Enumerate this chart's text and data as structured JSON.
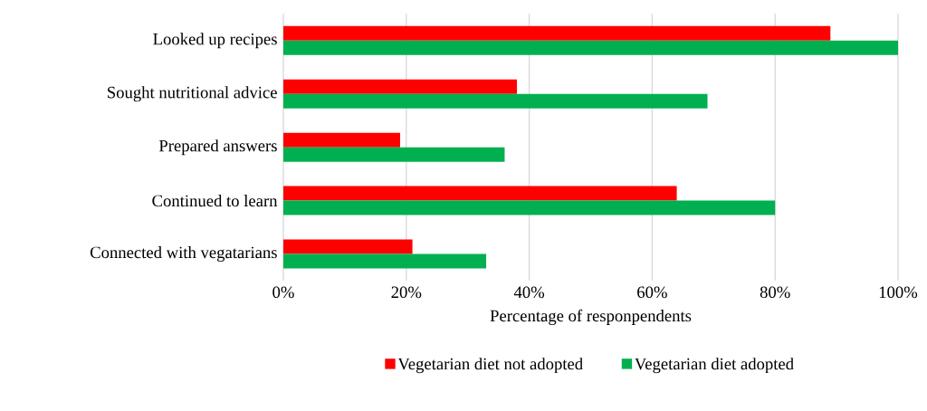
{
  "chart_data": {
    "type": "bar",
    "orientation": "horizontal",
    "xlabel": "Percentage of responpendents",
    "categories": [
      "Looked up recipes",
      "Sought nutritional advice",
      "Prepared answers",
      "Continued to learn",
      "Connected with vegatarians"
    ],
    "series": [
      {
        "name": "Vegetarian diet not adopted",
        "color": "#ff0000",
        "values": [
          89,
          38,
          19,
          64,
          21
        ]
      },
      {
        "name": "Vegetarian diet adopted",
        "color": "#00b050",
        "values": [
          100,
          69,
          36,
          80,
          33
        ]
      }
    ],
    "xlim": [
      0,
      100
    ],
    "xticks": [
      {
        "value": 0,
        "label": "0%"
      },
      {
        "value": 20,
        "label": "20%"
      },
      {
        "value": 40,
        "label": "40%"
      },
      {
        "value": 60,
        "label": "60%"
      },
      {
        "value": 80,
        "label": "80%"
      },
      {
        "value": 100,
        "label": "100%"
      }
    ],
    "grid": "x",
    "legend": "bottom"
  }
}
